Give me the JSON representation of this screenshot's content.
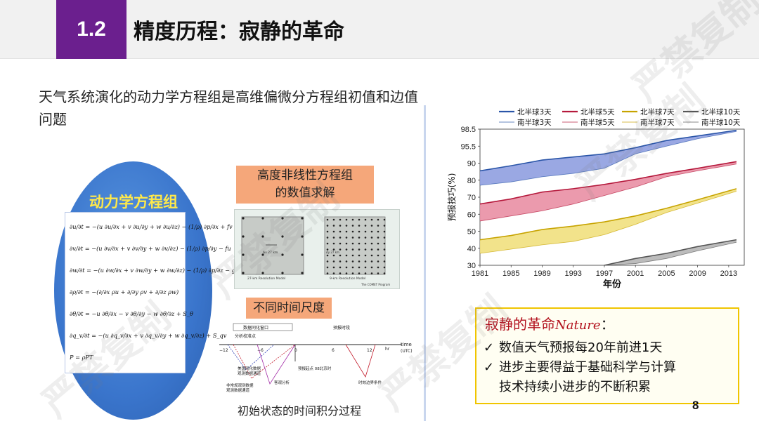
{
  "header": {
    "section_number": "1.2",
    "title": "精度历程：寂静的革命"
  },
  "intro": "天气系统演化的动力学方程组是高维偏微分方程组初值和边值问题",
  "dynamics": {
    "title": "动力学方程组",
    "equations": [
      "∂u/∂t = −(u ∂u/∂x + v ∂u/∂y + w ∂u/∂z) − (1/ρ) ∂p/∂x + fv",
      "∂v/∂t = −(u ∂v/∂x + v ∂v/∂y + w ∂v/∂z) − (1/ρ) ∂p/∂y − fu",
      "∂w/∂t = −(u ∂w/∂x + v ∂w/∂y + w ∂w/∂z) − (1/ρ) ∂p/∂z − g",
      "∂ρ/∂t = −(∂/∂x ρu + ∂/∂y ρv + ∂/∂z ρw)",
      "∂θ/∂t = −u ∂θ/∂x − v ∂θ/∂y − w ∂θ/∂z + S_θ",
      "∂q_v/∂t = −(u ∂q_v/∂x + v ∂q_v/∂y + w ∂q_v/∂z) + S_qv",
      "P = ρPT"
    ]
  },
  "nonlinear": {
    "label_line1": "高度非线性方程组",
    "label_line2": "的数值求解",
    "panel_left": "27-km Resolution Model",
    "panel_right": "9-km Resolution Model",
    "dx_left": "Δx 27 km",
    "dx_right": "Δy 27 km",
    "credit": "The COMET Program"
  },
  "timescale": {
    "label": "不同时间尺度",
    "caption": "初始状态的时间积分过程",
    "window_label": "数据同化窗口",
    "forecast_label": "预报时段",
    "analysis_label": "分析校准点",
    "ticks": [
      "−12",
      "−6",
      "0",
      "6",
      "12",
      "hr"
    ],
    "time_label": "time",
    "utc_label": "(UTC)",
    "note1": "美国同化数据",
    "note2": "观测数据通道",
    "note3": "非常规观测数据",
    "note4": "观测数据通道",
    "note5": "客观分析",
    "note6": "预报起点 08北京时",
    "note7": "时效边界条件"
  },
  "chart_data": {
    "type": "area",
    "legend": {
      "row1": [
        "北半球3天",
        "北半球5天",
        "北半球7天",
        "北半球10天"
      ],
      "row2": [
        "南半球3天",
        "南半球5天",
        "南半球7天",
        "南半球10天"
      ]
    },
    "xlabel": "年份",
    "ylabel": "预报技巧(%)",
    "x_ticks": [
      1981,
      1985,
      1989,
      1993,
      1997,
      2001,
      2005,
      2009,
      2013
    ],
    "y_ticks": [
      30,
      40,
      50,
      60,
      70,
      80,
      90,
      95.5,
      98.5
    ],
    "xlim": [
      1981,
      2015
    ],
    "ylim": [
      30,
      98.5
    ],
    "series": [
      {
        "name": "北半球3天",
        "color": "#2a55a8",
        "fill": "#8f9fe0",
        "x": [
          1981,
          1985,
          1989,
          1993,
          1997,
          2001,
          2005,
          2009,
          2014
        ],
        "nh": [
          85.5,
          88.5,
          91,
          92,
          93,
          95,
          96.5,
          97.3,
          98.3
        ],
        "sh": [
          77,
          79,
          82,
          84,
          87,
          93,
          95.5,
          96.8,
          98.1
        ]
      },
      {
        "name": "北半球5天",
        "color": "#b5193c",
        "fill": "#e98fa4",
        "x": [
          1981,
          1985,
          1989,
          1993,
          1997,
          2001,
          2005,
          2009,
          2014
        ],
        "nh": [
          66,
          69,
          73,
          75,
          77.5,
          80.5,
          84,
          87,
          90.5
        ],
        "sh": [
          56,
          59,
          62,
          66,
          71,
          76,
          82,
          85.5,
          89.5
        ]
      },
      {
        "name": "北半球7天",
        "color": "#c7a300",
        "fill": "#f1e07e",
        "x": [
          1981,
          1985,
          1989,
          1993,
          1997,
          2001,
          2005,
          2009,
          2014
        ],
        "nh": [
          45,
          47.5,
          51,
          53,
          55.5,
          59,
          63.5,
          68.5,
          75
        ],
        "sh": [
          37,
          39.5,
          42,
          44,
          48,
          54,
          61,
          66.5,
          73.5
        ]
      },
      {
        "name": "北半球10天",
        "color": "#555555",
        "fill": "#b5b5b5",
        "x": [
          1997,
          2001,
          2005,
          2009,
          2014
        ],
        "nh": [
          30,
          34,
          37,
          41,
          45
        ],
        "sh": [
          30,
          31,
          34,
          38.5,
          43.5
        ]
      }
    ]
  },
  "callout": {
    "title": "寂静的革命",
    "nature": "Nature",
    "colon": "：",
    "check": "✓",
    "bullet1": "数值天气预报每20年前进1天",
    "bullet2_line1": "进步主要得益于基础科学与计算",
    "bullet2_line2": "技术持续小进步的不断积累"
  },
  "page_number": "8",
  "watermark": "严禁复制"
}
